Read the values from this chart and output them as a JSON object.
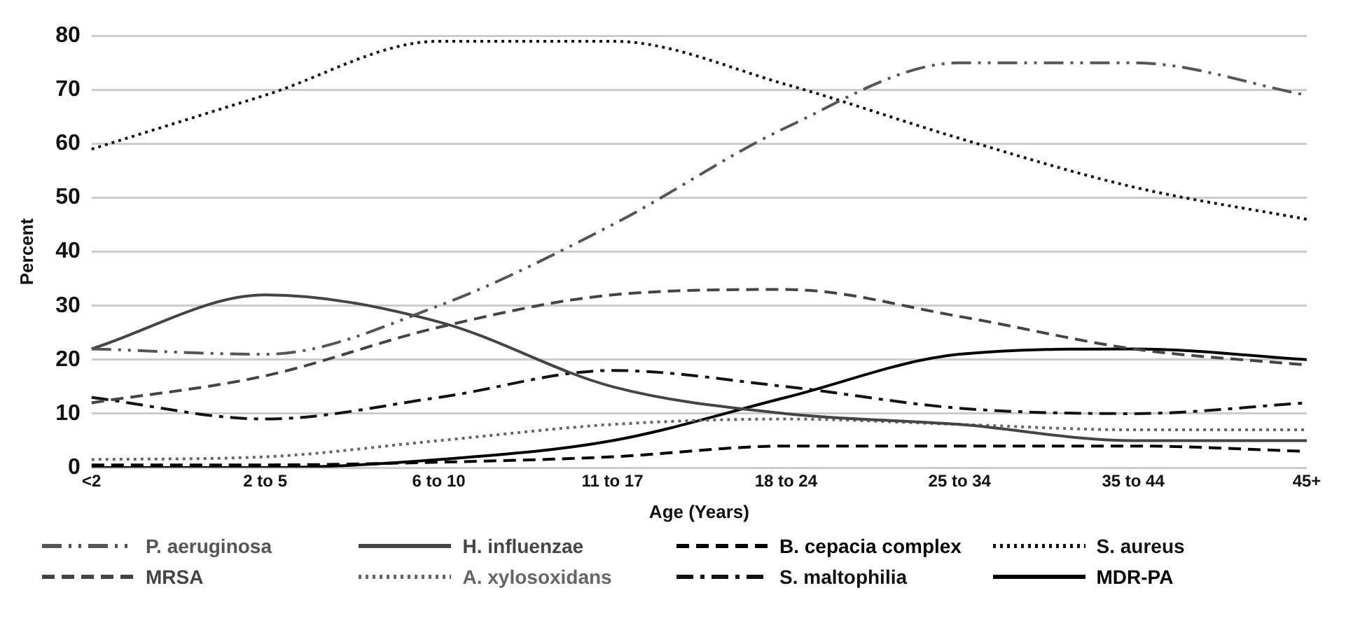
{
  "chart_data": {
    "type": "line",
    "xlabel": "Age (Years)",
    "ylabel": "Percent",
    "categories": [
      "<2",
      "2 to 5",
      "6 to 10",
      "11 to 17",
      "18 to 24",
      "25 to 34",
      "35 to 44",
      "45+"
    ],
    "series": [
      {
        "name": "P. aeruginosa",
        "color": "#555555",
        "line_style": "dashdotdot",
        "values": [
          22,
          21,
          30,
          45,
          63,
          75,
          75,
          69
        ]
      },
      {
        "name": "H. influenzae",
        "color": "#444444",
        "line_style": "solid",
        "values": [
          22,
          32,
          27,
          15,
          10,
          8,
          5,
          5
        ]
      },
      {
        "name": "B. cepacia complex",
        "color": "#000000",
        "line_style": "dashed",
        "values": [
          0.5,
          0.5,
          1,
          2,
          4,
          4,
          4,
          3
        ]
      },
      {
        "name": "S. aureus",
        "color": "#111111",
        "line_style": "dotted",
        "values": [
          59,
          69,
          79,
          79,
          71,
          61,
          52,
          46
        ]
      },
      {
        "name": "MRSA",
        "color": "#444444",
        "line_style": "dashed",
        "values": [
          12,
          17,
          26,
          32,
          33,
          28,
          22,
          19
        ]
      },
      {
        "name": "A. xylosoxidans",
        "color": "#666666",
        "line_style": "dotted",
        "values": [
          1.5,
          2,
          5,
          8,
          9,
          8,
          7,
          7
        ]
      },
      {
        "name": "S. maltophilia",
        "color": "#111111",
        "line_style": "dashdot",
        "values": [
          13,
          9,
          13,
          18,
          15,
          11,
          10,
          12
        ]
      },
      {
        "name": "MDR-PA",
        "color": "#000000",
        "line_style": "solid",
        "values": [
          0,
          0,
          1.5,
          5,
          13,
          21,
          22,
          20
        ]
      }
    ],
    "ylim": [
      0,
      80
    ],
    "yticks": [
      0,
      10,
      20,
      30,
      40,
      50,
      60,
      70,
      80
    ],
    "grid": "y",
    "legend": "bottom",
    "marker": "none"
  }
}
